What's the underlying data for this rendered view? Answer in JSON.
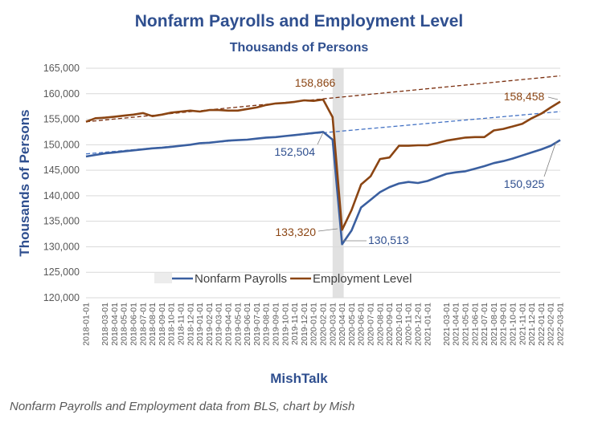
{
  "chart_data": {
    "type": "line",
    "title": "Nonfarm Payrolls and Employment Level",
    "subtitle": "Thousands of Persons",
    "ylabel": "Thousands  of  Persons",
    "xlabel": "MishTalk",
    "ylim": [
      120000,
      165000
    ],
    "yticks": [
      "120,000",
      "125,000",
      "130,000",
      "135,000",
      "140,000",
      "145,000",
      "150,000",
      "155,000",
      "160,000",
      "165,000"
    ],
    "x": [
      "2018-01-01",
      "2018-02-01",
      "2018-03-01",
      "2018-04-01",
      "2018-05-01",
      "2018-06-01",
      "2018-07-01",
      "2018-08-01",
      "2018-09-01",
      "2018-10-01",
      "2018-11-01",
      "2018-12-01",
      "2019-01-01",
      "2019-02-01",
      "2019-03-01",
      "2019-04-01",
      "2019-05-01",
      "2019-06-01",
      "2019-07-01",
      "2019-08-01",
      "2019-09-01",
      "2019-10-01",
      "2019-11-01",
      "2019-12-01",
      "2020-01-01",
      "2020-02-01",
      "2020-03-01",
      "2020-04-01",
      "2020-05-01",
      "2020-06-01",
      "2020-07-01",
      "2020-08-01",
      "2020-09-01",
      "2020-10-01",
      "2020-11-01",
      "2020-12-01",
      "2021-01-01",
      "2021-02-01",
      "2021-03-01",
      "2021-04-01",
      "2021-05-01",
      "2021-06-01",
      "2021-07-01",
      "2021-08-01",
      "2021-09-01",
      "2021-10-01",
      "2021-11-01",
      "2021-12-01",
      "2022-01-01",
      "2022-02-01",
      "2022-03-01"
    ],
    "xtick_labels": [
      "2018-01-01",
      "2018-03-01",
      "2018-04-01",
      "2018-05-01",
      "2018-06-01",
      "2018-07-01",
      "2018-08-01",
      "2018-09-01",
      "2018-10-01",
      "2018-11-01",
      "2018-12-01",
      "2019-01-01",
      "2019-02-01",
      "2019-03-01",
      "2019-04-01",
      "2019-05-01",
      "2019-06-01",
      "2019-07-01",
      "2019-08-01",
      "2019-09-01",
      "2019-10-01",
      "2019-11-01",
      "2019-12-01",
      "2020-01-01",
      "2020-02-01",
      "2020-03-01",
      "2020-04-01",
      "2020-05-01",
      "2020-06-01",
      "2020-07-01",
      "2020-08-01",
      "2020-09-01",
      "2020-10-01",
      "2020-11-01",
      "2020-12-01",
      "2021-01-01",
      "2021-03-01",
      "2021-04-01",
      "2021-05-01",
      "2021-06-01",
      "2021-07-01",
      "2021-08-01",
      "2021-09-01",
      "2021-10-01",
      "2021-11-01",
      "2021-12-01",
      "2022-01-01",
      "2022-02-01",
      "2022-03-01"
    ],
    "recession_shading": {
      "start": "2020-03-01",
      "end": "2020-04-01",
      "color": "#d9d9d9"
    },
    "series": [
      {
        "name": "Nonfarm Payrolls",
        "color": "#3a5fa0",
        "values": [
          147700,
          148000,
          148300,
          148500,
          148700,
          148900,
          149100,
          149300,
          149400,
          149600,
          149800,
          150000,
          150300,
          150400,
          150600,
          150800,
          150900,
          151000,
          151200,
          151400,
          151500,
          151700,
          151900,
          152100,
          152300,
          152504,
          151000,
          130513,
          133200,
          137700,
          139200,
          140700,
          141700,
          142400,
          142700,
          142500,
          142900,
          143600,
          144300,
          144600,
          144800,
          145300,
          145800,
          146400,
          146800,
          147300,
          147900,
          148500,
          149100,
          149800,
          150925
        ]
      },
      {
        "name": "Employment Level",
        "color": "#8b4513",
        "values": [
          154500,
          155200,
          155300,
          155500,
          155700,
          155900,
          156200,
          155600,
          155900,
          156300,
          156500,
          156700,
          156500,
          156800,
          156800,
          156700,
          156700,
          157000,
          157300,
          157800,
          158100,
          158200,
          158400,
          158700,
          158600,
          158866,
          155400,
          133320,
          137200,
          142200,
          143800,
          147200,
          147500,
          149800,
          149800,
          149900,
          149900,
          150300,
          150800,
          151100,
          151400,
          151500,
          151500,
          152800,
          153100,
          153600,
          154100,
          155200,
          156100,
          157300,
          158458
        ]
      }
    ],
    "trendlines": [
      {
        "series": "Employment Level",
        "from": 154500,
        "to": 163500,
        "color": "#7a2e0e",
        "style": "dashed"
      },
      {
        "series": "Nonfarm Payrolls",
        "from": 148200,
        "to": 156500,
        "color": "#4472c4",
        "style": "dashed"
      }
    ],
    "annotations": [
      {
        "text": "158,866",
        "series": "Employment Level",
        "color": "#8b4513"
      },
      {
        "text": "152,504",
        "series": "Nonfarm Payrolls",
        "color": "#2f4f8f"
      },
      {
        "text": "133,320",
        "series": "Employment Level",
        "color": "#8b4513"
      },
      {
        "text": "130,513",
        "series": "Nonfarm Payrolls",
        "color": "#2f4f8f"
      },
      {
        "text": "158,458",
        "series": "Employment Level",
        "color": "#8b4513"
      },
      {
        "text": "150,925",
        "series": "Nonfarm Payrolls",
        "color": "#2f4f8f"
      }
    ],
    "legend": {
      "placement": "bottom-center"
    }
  },
  "caption": "Nonfarm Payrolls and Employment data from BLS, chart by Mish"
}
